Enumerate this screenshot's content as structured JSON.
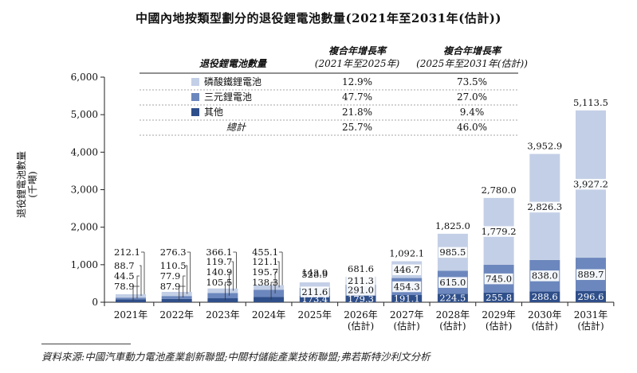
{
  "title": "中國內地按類型劃分的退役鋰電池數量(2021年至2031年(估計))",
  "source": "資料來源:中國汽車動力電池產業創新聯盟;中關村儲能產業技術聯盟;弗若斯特沙利文分析",
  "colors": {
    "lfp": "#c3cfe6",
    "ncm": "#6c87bd",
    "other": "#2f4f8a",
    "axis": "#222222"
  },
  "legend_table": {
    "header": {
      "name": "退役鋰電池數量",
      "cagr1": "複合年增長率",
      "cagr1_sub": "(2021年至2025年)",
      "cagr2": "複合年增長率",
      "cagr2_sub": "(2025年至2031年(估計))"
    },
    "rows": [
      {
        "label": "磷酸鐵鋰電池",
        "cagr1": "12.9%",
        "cagr2": "73.5%",
        "swatch": "lfp"
      },
      {
        "label": "三元鋰電池",
        "cagr1": "47.7%",
        "cagr2": "27.0%",
        "swatch": "ncm"
      },
      {
        "label": "其他",
        "cagr1": "21.8%",
        "cagr2": "9.4%",
        "swatch": "other"
      },
      {
        "label": "總計",
        "cagr1": "25.7%",
        "cagr2": "46.0%",
        "swatch": null
      }
    ]
  },
  "chart_data": {
    "type": "bar",
    "stacked": true,
    "ylabel": "退役鋰電池數量(千噸)",
    "ylim": [
      0,
      6000
    ],
    "yticks": [
      "0",
      "1,000",
      "2,000",
      "3,000",
      "4,000",
      "5,000",
      "6,000"
    ],
    "categories": [
      [
        "2021年"
      ],
      [
        "2022年"
      ],
      [
        "2023年"
      ],
      [
        "2024年"
      ],
      [
        "2025年"
      ],
      [
        "2026年",
        "(估計)"
      ],
      [
        "2027年",
        "(估計)"
      ],
      [
        "2028年",
        "(估計)"
      ],
      [
        "2029年",
        "(估計)"
      ],
      [
        "2030年",
        "(估計)"
      ],
      [
        "2031年",
        "(估計)"
      ]
    ],
    "series": [
      {
        "name": "其他",
        "color": "other",
        "values": [
          78.9,
          87.9,
          105.5,
          138.3,
          173.4,
          179.3,
          191.1,
          224.5,
          255.8,
          288.6,
          296.6
        ],
        "labels": [
          "78.9",
          "87.9",
          "105.5",
          "138.3",
          "173.4",
          "179.3",
          "191.1",
          "224.5",
          "255.8",
          "288.6",
          "296.6"
        ]
      },
      {
        "name": "三元鋰電池",
        "color": "ncm",
        "values": [
          44.5,
          77.9,
          140.9,
          195.7,
          211.6,
          291.0,
          454.3,
          615.0,
          745.0,
          838.0,
          889.7
        ],
        "labels": [
          "44.5",
          "77.9",
          "140.9",
          "195.7",
          "211.6",
          "291.0",
          "454.3",
          "615.0",
          "745.0",
          "838.0",
          "889.7"
        ]
      },
      {
        "name": "磷酸鐵鋰電池",
        "color": "lfp",
        "values": [
          88.7,
          110.5,
          119.7,
          121.1,
          143.9,
          211.3,
          446.7,
          985.5,
          1779.2,
          2826.3,
          3927.2
        ],
        "labels": [
          "88.7",
          "110.5",
          "119.7",
          "121.1",
          "143.9",
          "211.3",
          "446.7",
          "985.5",
          "1,779.2",
          "2,826.3",
          "3,927.2"
        ]
      }
    ],
    "totals": [
      212.1,
      276.3,
      366.1,
      455.1,
      528.9,
      681.6,
      1092.1,
      1825.0,
      2780.0,
      3952.9,
      5113.5
    ],
    "total_labels": [
      "212.1",
      "276.3",
      "366.1",
      "455.1",
      "528.9",
      "681.6",
      "1,092.1",
      "1,825.0",
      "2,780.0",
      "3,952.9",
      "5,113.5"
    ]
  }
}
